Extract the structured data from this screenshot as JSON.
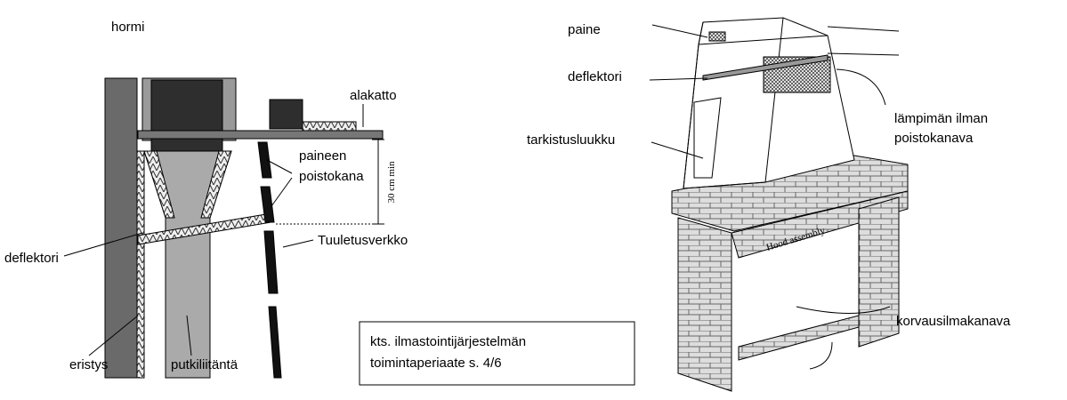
{
  "left_diagram": {
    "hormi": "hormi",
    "alakatto": "alakatto",
    "paineen_poistokana": [
      "paineen",
      "poistokana"
    ],
    "dimension": "30 cm min",
    "tuuletusverkko": "Tuuletusverkko",
    "deflektori": "deflektori",
    "eristys": "eristys",
    "putkiliitanta": "putkiliitäntä"
  },
  "note": {
    "lines": [
      "kts. ilmastointijärjestelmän",
      "toimintaperiaate s. 4/6"
    ]
  },
  "right_diagram": {
    "paine": "paine",
    "deflektori": "deflektori",
    "lampiman_ilman_poistokanava": [
      "lämpimän ilman",
      "poistokanava"
    ],
    "tarkistusluukku": "tarkistusluukku",
    "korvausilmakanava": "korvausilmakanava",
    "hood_assembly": "Hood assembly"
  }
}
